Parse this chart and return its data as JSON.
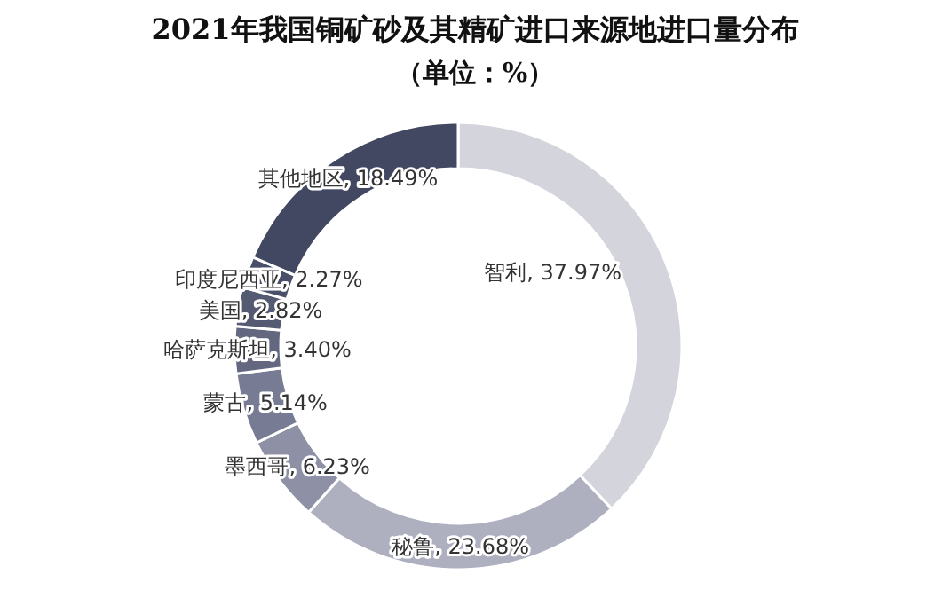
{
  "chart_data": {
    "type": "donut",
    "title": "2021年我国铜矿砂及其精矿进口来源地进口量分布",
    "subtitle": "（单位：%）",
    "categories": [
      "智利",
      "秘鲁",
      "墨西哥",
      "蒙古",
      "哈萨克斯坦",
      "美国",
      "印度尼西亚",
      "其他地区"
    ],
    "values": [
      37.97,
      23.68,
      6.23,
      5.14,
      3.4,
      2.82,
      2.27,
      18.49
    ],
    "colors": [
      "#d3d4dc",
      "#aeb0c0",
      "#8e91a6",
      "#777b93",
      "#63677f",
      "#555a73",
      "#4b506a",
      "#434862"
    ],
    "value_labels": [
      ", 37.97%",
      ", 23.68%",
      ", 6.23%",
      ", 5.14%",
      ", 3.40%",
      ", 2.82%",
      ", 2.27%",
      ", 18.49%"
    ],
    "legend": false
  }
}
